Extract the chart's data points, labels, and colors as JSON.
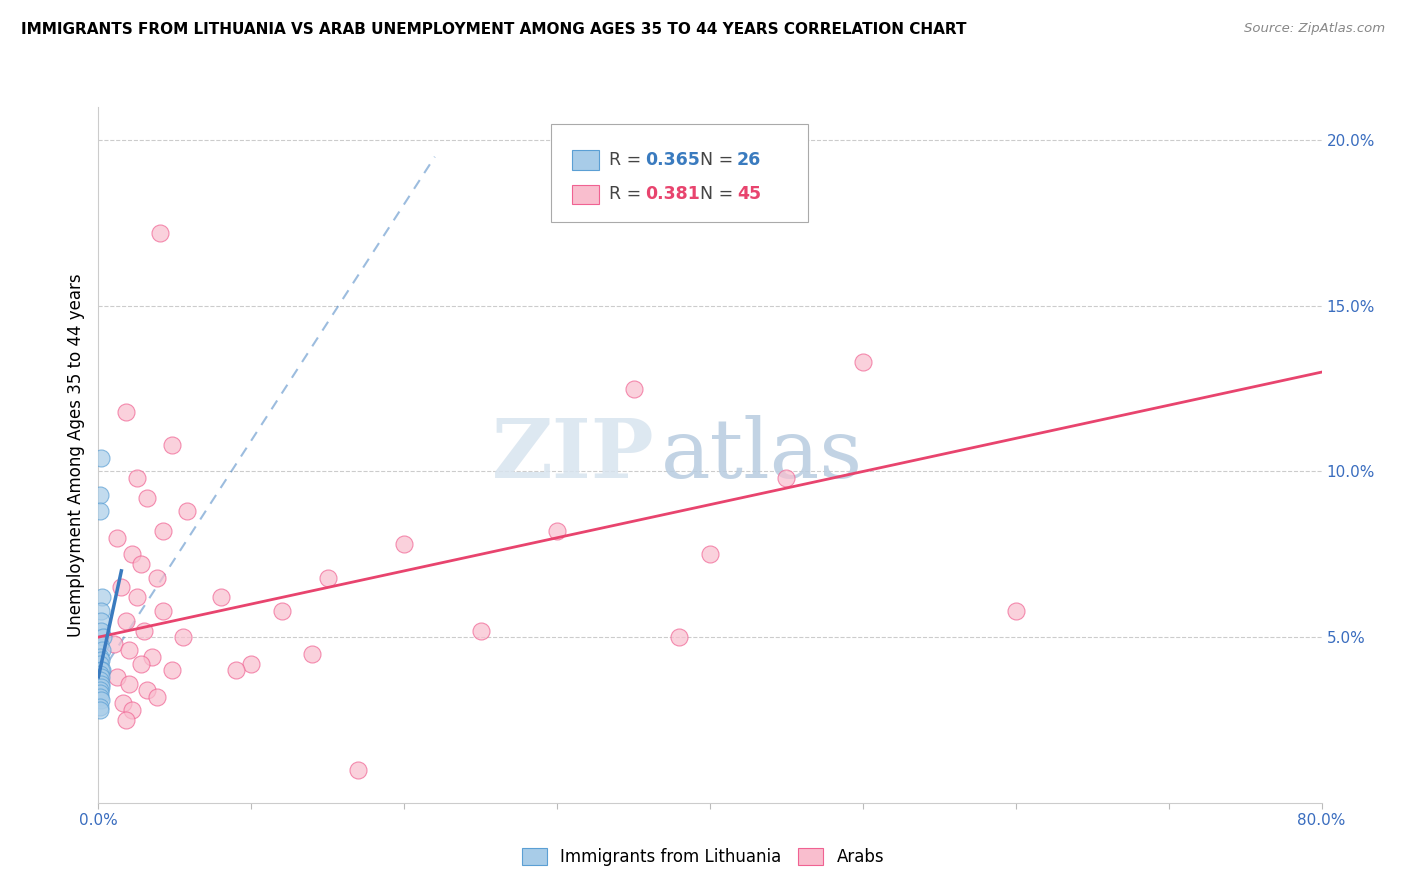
{
  "title": "IMMIGRANTS FROM LITHUANIA VS ARAB UNEMPLOYMENT AMONG AGES 35 TO 44 YEARS CORRELATION CHART",
  "source": "Source: ZipAtlas.com",
  "ylabel": "Unemployment Among Ages 35 to 44 years",
  "xlim": [
    0,
    0.8
  ],
  "ylim": [
    0,
    0.21
  ],
  "xticks": [
    0.0,
    0.1,
    0.2,
    0.3,
    0.4,
    0.5,
    0.6,
    0.7,
    0.8
  ],
  "xticklabels": [
    "0.0%",
    "",
    "",
    "",
    "",
    "",
    "",
    "",
    "80.0%"
  ],
  "yticks_right": [
    0.0,
    0.05,
    0.1,
    0.15,
    0.2
  ],
  "yticklabels_right": [
    "",
    "5.0%",
    "10.0%",
    "15.0%",
    "20.0%"
  ],
  "legend_label1": "Immigrants from Lithuania",
  "legend_label2": "Arabs",
  "watermark_zip": "ZIP",
  "watermark_atlas": "atlas",
  "blue_color": "#a8cce8",
  "pink_color": "#f9bece",
  "blue_edge_color": "#5b9fd4",
  "pink_edge_color": "#f06292",
  "blue_line_color": "#3a7bbf",
  "pink_line_color": "#e8446e",
  "blue_scatter": [
    [
      0.0015,
      0.104
    ],
    [
      0.001,
      0.093
    ],
    [
      0.0012,
      0.088
    ],
    [
      0.0025,
      0.062
    ],
    [
      0.0018,
      0.058
    ],
    [
      0.0015,
      0.055
    ],
    [
      0.002,
      0.052
    ],
    [
      0.003,
      0.05
    ],
    [
      0.001,
      0.048
    ],
    [
      0.0022,
      0.046
    ],
    [
      0.0008,
      0.044
    ],
    [
      0.0018,
      0.043
    ],
    [
      0.0012,
      0.042
    ],
    [
      0.0025,
      0.04
    ],
    [
      0.0015,
      0.04
    ],
    [
      0.001,
      0.039
    ],
    [
      0.002,
      0.038
    ],
    [
      0.0008,
      0.037
    ],
    [
      0.0015,
      0.036
    ],
    [
      0.0018,
      0.035
    ],
    [
      0.001,
      0.034
    ],
    [
      0.0012,
      0.033
    ],
    [
      0.0008,
      0.032
    ],
    [
      0.0015,
      0.031
    ],
    [
      0.001,
      0.029
    ],
    [
      0.0008,
      0.028
    ]
  ],
  "pink_scatter": [
    [
      0.04,
      0.172
    ],
    [
      0.018,
      0.118
    ],
    [
      0.048,
      0.108
    ],
    [
      0.025,
      0.098
    ],
    [
      0.032,
      0.092
    ],
    [
      0.058,
      0.088
    ],
    [
      0.042,
      0.082
    ],
    [
      0.012,
      0.08
    ],
    [
      0.022,
      0.075
    ],
    [
      0.028,
      0.072
    ],
    [
      0.038,
      0.068
    ],
    [
      0.015,
      0.065
    ],
    [
      0.025,
      0.062
    ],
    [
      0.042,
      0.058
    ],
    [
      0.018,
      0.055
    ],
    [
      0.03,
      0.052
    ],
    [
      0.055,
      0.05
    ],
    [
      0.01,
      0.048
    ],
    [
      0.02,
      0.046
    ],
    [
      0.035,
      0.044
    ],
    [
      0.028,
      0.042
    ],
    [
      0.048,
      0.04
    ],
    [
      0.012,
      0.038
    ],
    [
      0.02,
      0.036
    ],
    [
      0.032,
      0.034
    ],
    [
      0.038,
      0.032
    ],
    [
      0.016,
      0.03
    ],
    [
      0.022,
      0.028
    ],
    [
      0.018,
      0.025
    ],
    [
      0.5,
      0.133
    ],
    [
      0.35,
      0.125
    ],
    [
      0.45,
      0.098
    ],
    [
      0.3,
      0.082
    ],
    [
      0.4,
      0.075
    ],
    [
      0.6,
      0.058
    ],
    [
      0.2,
      0.078
    ],
    [
      0.15,
      0.068
    ],
    [
      0.25,
      0.052
    ],
    [
      0.38,
      0.05
    ],
    [
      0.12,
      0.058
    ],
    [
      0.08,
      0.062
    ],
    [
      0.1,
      0.042
    ],
    [
      0.17,
      0.01
    ],
    [
      0.14,
      0.045
    ],
    [
      0.09,
      0.04
    ]
  ],
  "blue_solid_line": [
    [
      0.0,
      0.038
    ],
    [
      0.015,
      0.07
    ]
  ],
  "blue_dashed_line": [
    [
      0.0,
      0.038
    ],
    [
      0.22,
      0.195
    ]
  ],
  "pink_trendline": [
    [
      0.0,
      0.05
    ],
    [
      0.8,
      0.13
    ]
  ]
}
